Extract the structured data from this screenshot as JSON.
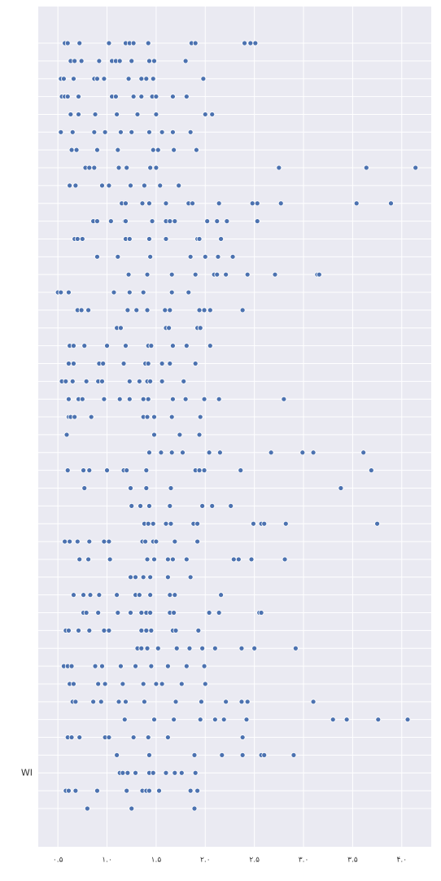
{
  "chart_data": {
    "type": "strip",
    "color": "#4c72b0",
    "grid": true,
    "categories": [
      null,
      null,
      null,
      null,
      null,
      null,
      null,
      null,
      null,
      null,
      null,
      null,
      null,
      null,
      null,
      null,
      null,
      null,
      null,
      null,
      null,
      null,
      null,
      null,
      null,
      null,
      null,
      null,
      null,
      null,
      null,
      null,
      null,
      null,
      null,
      null,
      null,
      null,
      null,
      null,
      null,
      "WI",
      null,
      null
    ],
    "values": [
      [
        0.57,
        0.6,
        0.72,
        1.02,
        1.19,
        1.23,
        1.27,
        1.42,
        1.86,
        1.9,
        2.4,
        2.46,
        2.51
      ],
      [
        0.63,
        0.67,
        0.74,
        0.92,
        1.05,
        1.09,
        1.13,
        1.25,
        1.43,
        1.48,
        1.8
      ],
      [
        0.53,
        0.56,
        0.66,
        0.87,
        0.9,
        0.97,
        1.22,
        1.35,
        1.4,
        1.47,
        1.98
      ],
      [
        0.54,
        0.57,
        0.6,
        0.71,
        1.05,
        1.09,
        1.27,
        1.35,
        1.46,
        1.5,
        1.67,
        1.81
      ],
      [
        0.63,
        0.71,
        0.88,
        1.1,
        1.31,
        1.5,
        2.0,
        2.07
      ],
      [
        0.53,
        0.65,
        0.87,
        0.98,
        1.14,
        1.25,
        1.43,
        1.56,
        1.67,
        1.85
      ],
      [
        0.64,
        0.69,
        0.9,
        1.11,
        1.47,
        1.52,
        1.68,
        1.91
      ],
      [
        0.78,
        0.82,
        0.87,
        1.12,
        1.2,
        1.44,
        1.5,
        2.75,
        3.64,
        4.14
      ],
      [
        0.62,
        0.68,
        0.95,
        1.02,
        1.24,
        1.38,
        1.54,
        1.73
      ],
      [
        1.15,
        1.19,
        1.36,
        1.43,
        1.6,
        1.83,
        1.87,
        2.14,
        2.48,
        2.53,
        2.77,
        3.54,
        3.89
      ],
      [
        0.86,
        0.9,
        1.04,
        1.18,
        1.19,
        1.46,
        1.6,
        1.64,
        1.69,
        2.02,
        2.12,
        2.22,
        2.53
      ],
      [
        0.67,
        0.7,
        0.75,
        1.19,
        1.23,
        1.43,
        1.6,
        1.92,
        1.94,
        2.16
      ],
      [
        0.9,
        1.11,
        1.44,
        1.85,
        2.0,
        2.13,
        2.28
      ],
      [
        1.22,
        1.41,
        1.66,
        1.9,
        2.09,
        2.12,
        2.21,
        2.43,
        2.71,
        3.14,
        3.16
      ],
      [
        0.5,
        0.53,
        0.61,
        1.07,
        1.23,
        1.37,
        1.66,
        1.83
      ],
      [
        0.7,
        0.74,
        0.81,
        1.21,
        1.3,
        1.41,
        1.59,
        1.64,
        1.94,
        1.99,
        2.05,
        2.38
      ],
      [
        1.1,
        1.14,
        1.6,
        1.63,
        1.92,
        1.95
      ],
      [
        0.62,
        0.66,
        0.77,
        1.0,
        1.19,
        1.42,
        1.45,
        1.67,
        1.81,
        2.05
      ],
      [
        0.61,
        0.66,
        0.92,
        0.96,
        1.17,
        1.39,
        1.42,
        1.56,
        1.64,
        1.9
      ],
      [
        0.54,
        0.58,
        0.65,
        0.79,
        0.91,
        0.95,
        1.23,
        1.33,
        1.41,
        1.44,
        1.56,
        1.78
      ],
      [
        0.61,
        0.71,
        0.75,
        0.97,
        1.13,
        1.23,
        1.37,
        1.42,
        1.67,
        1.8,
        1.99,
        2.14,
        2.8
      ],
      [
        0.61,
        0.63,
        0.67,
        0.84,
        1.37,
        1.41,
        1.48,
        1.66,
        1.95
      ],
      [
        0.59,
        1.48,
        1.74,
        1.94
      ],
      [
        1.43,
        1.55,
        1.66,
        1.77,
        2.04,
        2.15,
        2.67,
        2.99,
        3.1,
        3.61
      ],
      [
        0.6,
        0.76,
        0.82,
        1.0,
        1.17,
        1.2,
        1.4,
        1.9,
        1.94,
        1.99,
        2.36,
        3.69
      ],
      [
        0.77,
        1.24,
        1.4,
        1.65,
        3.38
      ],
      [
        1.25,
        1.34,
        1.43,
        1.64,
        1.97,
        2.07,
        2.26
      ],
      [
        1.38,
        1.42,
        1.47,
        1.6,
        1.65,
        1.88,
        1.92,
        2.49,
        2.57,
        2.6,
        2.82,
        3.75
      ],
      [
        0.57,
        0.62,
        0.7,
        0.82,
        0.97,
        1.02,
        1.36,
        1.39,
        1.47,
        1.5,
        1.69,
        1.92
      ],
      [
        0.72,
        0.81,
        1.03,
        1.41,
        1.48,
        1.62,
        1.67,
        1.81,
        2.29,
        2.34,
        2.47,
        2.81
      ],
      [
        1.24,
        1.29,
        1.37,
        1.44,
        1.62,
        1.85
      ],
      [
        0.66,
        0.76,
        0.83,
        0.92,
        1.1,
        1.29,
        1.33,
        1.44,
        1.64,
        1.69,
        2.16
      ],
      [
        0.76,
        0.79,
        0.91,
        1.11,
        1.24,
        1.35,
        1.4,
        1.44,
        1.64,
        1.68,
        2.04,
        2.14,
        2.55,
        2.57
      ],
      [
        0.58,
        0.61,
        0.71,
        0.82,
        0.97,
        1.02,
        1.35,
        1.4,
        1.45,
        1.67,
        1.7,
        1.93
      ],
      [
        1.31,
        1.35,
        1.41,
        1.52,
        1.71,
        1.84,
        1.97,
        2.1,
        2.37,
        2.5,
        2.92
      ],
      [
        0.56,
        0.6,
        0.64,
        0.88,
        0.95,
        1.14,
        1.29,
        1.45,
        1.62,
        1.81,
        1.99
      ],
      [
        0.62,
        0.66,
        0.91,
        0.98,
        1.16,
        1.37,
        1.5,
        1.56,
        1.76,
        2.0
      ],
      [
        0.65,
        0.68,
        0.86,
        0.94,
        1.12,
        1.19,
        1.38,
        1.7,
        1.96,
        2.21,
        2.37,
        2.43,
        3.1
      ],
      [
        1.18,
        1.48,
        1.68,
        1.95,
        2.1,
        2.19,
        2.42,
        3.3,
        3.44,
        3.76,
        4.06
      ],
      [
        0.6,
        0.64,
        0.72,
        0.98,
        1.02,
        1.27,
        1.42,
        1.62,
        2.38
      ],
      [
        1.1,
        1.43,
        1.89,
        2.17,
        2.38,
        2.57,
        2.6,
        2.9
      ],
      [
        1.13,
        1.16,
        1.21,
        1.29,
        1.43,
        1.47,
        1.6,
        1.69,
        1.76,
        1.9
      ],
      [
        0.58,
        0.61,
        0.68,
        0.9,
        1.2,
        1.36,
        1.4,
        1.43,
        1.53,
        1.85,
        1.92
      ],
      [
        0.8,
        1.25,
        1.89
      ]
    ],
    "xlim": [
      0.3,
      4.3
    ],
    "xticks": [
      {
        "value": 0.5,
        "label": "۰.۵"
      },
      {
        "value": 1.0,
        "label": "۱.۰"
      },
      {
        "value": 1.5,
        "label": "۱.۵"
      },
      {
        "value": 2.0,
        "label": "۲.۰"
      },
      {
        "value": 2.5,
        "label": "۲.۵"
      },
      {
        "value": 3.0,
        "label": "۳.۰"
      },
      {
        "value": 3.5,
        "label": "۳.۵"
      },
      {
        "value": 4.0,
        "label": "۴.۰"
      }
    ]
  }
}
